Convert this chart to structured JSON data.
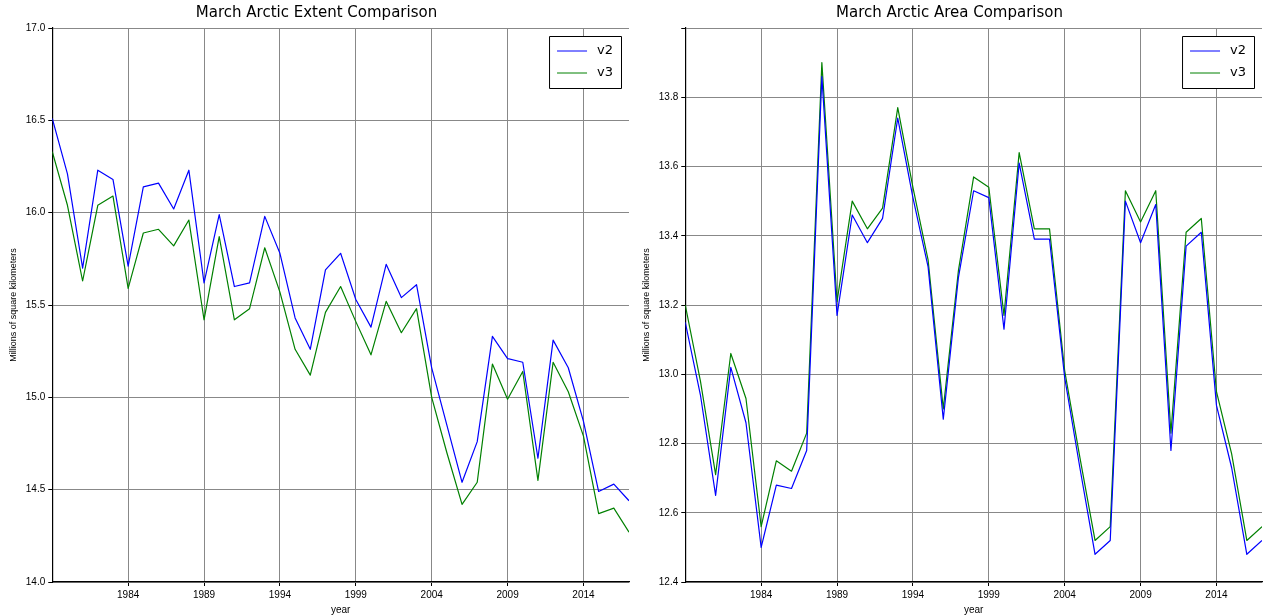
{
  "chart_data": [
    {
      "type": "line",
      "title": "March Arctic Extent Comparison",
      "xlabel": "year",
      "ylabel": "Millions of square kilometers",
      "x": [
        1979,
        1980,
        1981,
        1982,
        1983,
        1984,
        1985,
        1986,
        1987,
        1988,
        1989,
        1990,
        1991,
        1992,
        1993,
        1994,
        1995,
        1996,
        1997,
        1998,
        1999,
        2000,
        2001,
        2002,
        2003,
        2004,
        2005,
        2006,
        2007,
        2008,
        2009,
        2010,
        2011,
        2012,
        2013,
        2014,
        2015,
        2016,
        2017
      ],
      "series": [
        {
          "name": "v2",
          "color": "#0000ff",
          "values": [
            16.51,
            16.21,
            15.7,
            16.23,
            16.18,
            15.71,
            16.14,
            16.16,
            16.02,
            16.23,
            15.62,
            15.99,
            15.6,
            15.62,
            15.98,
            15.78,
            15.43,
            15.26,
            15.69,
            15.78,
            15.53,
            15.38,
            15.72,
            15.54,
            15.61,
            15.16,
            14.85,
            14.54,
            14.76,
            15.33,
            15.21,
            15.19,
            14.67,
            15.31,
            15.16,
            14.87,
            14.49,
            14.53,
            14.44
          ]
        },
        {
          "name": "v3",
          "color": "#008000",
          "values": [
            16.33,
            16.04,
            15.63,
            16.04,
            16.09,
            15.59,
            15.89,
            15.91,
            15.82,
            15.96,
            15.42,
            15.87,
            15.42,
            15.48,
            15.81,
            15.57,
            15.26,
            15.12,
            15.46,
            15.6,
            15.41,
            15.23,
            15.52,
            15.35,
            15.48,
            15.0,
            14.7,
            14.42,
            14.54,
            15.18,
            14.99,
            15.14,
            14.55,
            15.19,
            15.03,
            14.79,
            14.37,
            14.4,
            14.27
          ]
        }
      ],
      "xlim": [
        1979,
        2017
      ],
      "xticks": [
        1984,
        1989,
        1994,
        1999,
        2004,
        2009,
        2014
      ],
      "ylim": [
        14,
        17
      ],
      "yticks": [
        {
          "value": 14,
          "label": "14.0"
        },
        {
          "value": 14.5,
          "label": "14.5"
        },
        {
          "value": 15,
          "label": "15.0"
        },
        {
          "value": 15.5,
          "label": "15.5"
        },
        {
          "value": 16,
          "label": "16.0"
        },
        {
          "value": 16.5,
          "label": "16.5"
        },
        {
          "value": 17,
          "label": "17.0"
        }
      ],
      "grid": true,
      "legend": "top right",
      "line_style": "solid",
      "marker": "none"
    },
    {
      "type": "line",
      "title": "March Arctic Area Comparison",
      "xlabel": "year",
      "ylabel": "Millions of square kilometers",
      "x": [
        1979,
        1980,
        1981,
        1982,
        1983,
        1984,
        1985,
        1986,
        1987,
        1988,
        1989,
        1990,
        1991,
        1992,
        1993,
        1994,
        1995,
        1996,
        1997,
        1998,
        1999,
        2000,
        2001,
        2002,
        2003,
        2004,
        2005,
        2006,
        2007,
        2008,
        2009,
        2010,
        2011,
        2012,
        2013,
        2014,
        2015,
        2016,
        2017
      ],
      "series": [
        {
          "name": "v2",
          "color": "#0000ff",
          "values": [
            13.15,
            12.94,
            12.65,
            13.02,
            12.86,
            12.5,
            12.68,
            12.67,
            12.78,
            13.86,
            13.17,
            13.46,
            13.38,
            13.45,
            13.74,
            13.51,
            13.31,
            12.87,
            13.28,
            13.53,
            13.51,
            13.13,
            13.61,
            13.39,
            13.39,
            12.99,
            12.73,
            12.48,
            12.52,
            13.5,
            13.38,
            13.49,
            12.78,
            13.37,
            13.41,
            12.91,
            12.73,
            12.48,
            12.52
          ]
        },
        {
          "name": "v3",
          "color": "#008000",
          "values": [
            13.2,
            12.98,
            12.71,
            13.06,
            12.93,
            12.56,
            12.75,
            12.72,
            12.83,
            13.9,
            13.21,
            13.5,
            13.42,
            13.48,
            13.77,
            13.54,
            13.33,
            12.9,
            13.3,
            13.57,
            13.54,
            13.17,
            13.64,
            13.42,
            13.42,
            13.01,
            12.76,
            12.52,
            12.56,
            13.53,
            13.44,
            13.53,
            12.83,
            13.41,
            13.45,
            12.95,
            12.77,
            12.52,
            12.56
          ]
        }
      ],
      "xlim": [
        1979,
        2017
      ],
      "xticks": [
        1984,
        1989,
        1994,
        1999,
        2004,
        2009,
        2014
      ],
      "ylim": [
        12.4,
        14.0
      ],
      "yticks": [
        {
          "value": 12.4,
          "label": "12.4"
        },
        {
          "value": 12.6,
          "label": "12.6"
        },
        {
          "value": 12.8,
          "label": "12.8"
        },
        {
          "value": 13,
          "label": "13.0"
        },
        {
          "value": 13.2,
          "label": "13.2"
        },
        {
          "value": 13.4,
          "label": "13.4"
        },
        {
          "value": 13.6,
          "label": "13.6"
        },
        {
          "value": 13.8,
          "label": "13.8"
        },
        {
          "value": 14,
          "label": null
        }
      ],
      "grid": true,
      "legend": "top right",
      "line_style": "solid",
      "marker": "none"
    }
  ]
}
